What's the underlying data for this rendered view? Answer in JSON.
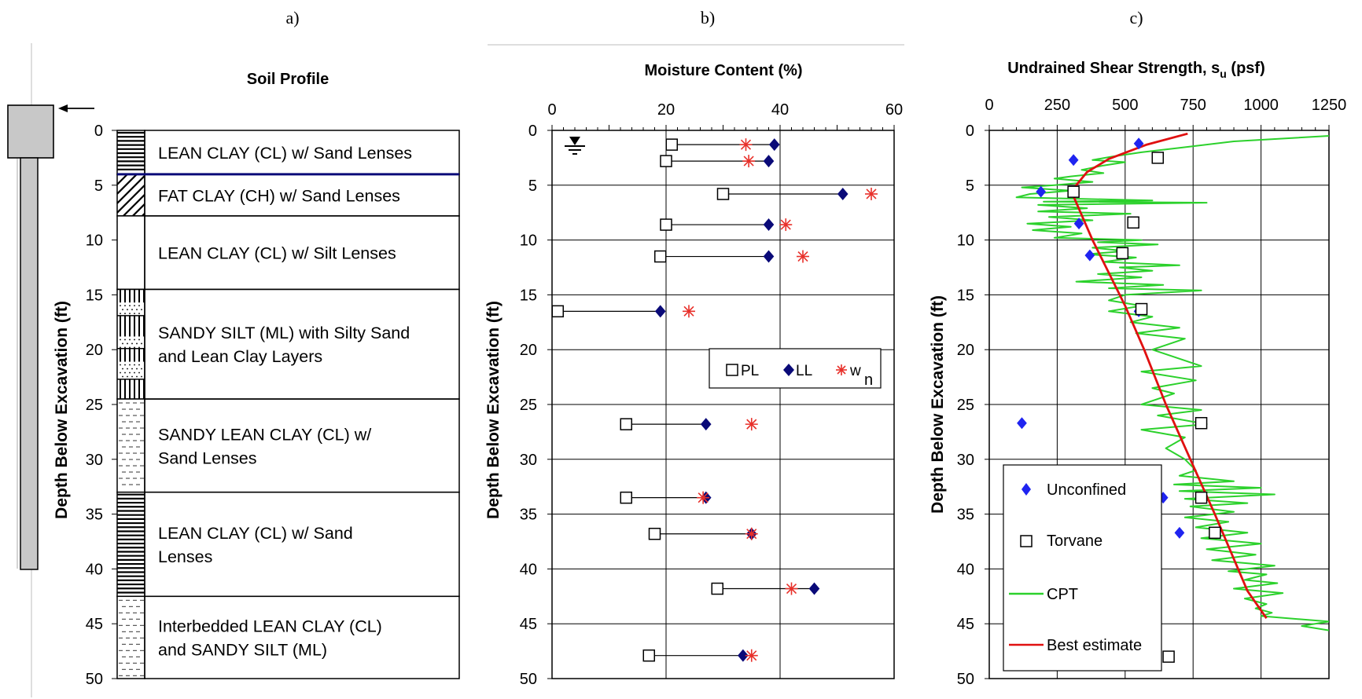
{
  "panel_labels": [
    "a)",
    "b)",
    "c)"
  ],
  "colors": {
    "axis": "#000000",
    "pl_marker": "#000000",
    "ll_marker": "#0a0a78",
    "wn_marker": "#e8302a",
    "unconfined": "#1f24f0",
    "torvane": "#000000",
    "cpt": "#2cd12c",
    "best_estimate": "#e01010",
    "layer_divider": "#0a0a78",
    "pile": "#c8c8c8"
  },
  "soil_profile": {
    "title": "Soil Profile",
    "ylabel": "Depth Below Excavation (ft)",
    "yticks": [
      0,
      5,
      10,
      15,
      20,
      25,
      30,
      35,
      40,
      45,
      50
    ],
    "ylim": [
      0,
      50
    ],
    "layers": [
      {
        "top": 0,
        "bottom": 4,
        "label_lines": [
          "LEAN CLAY (CL) w/ Sand Lenses"
        ],
        "hatch": "horizontal-lines"
      },
      {
        "top": 4,
        "bottom": 7.8,
        "label_lines": [
          "FAT CLAY (CH) w/ Sand Lenses"
        ],
        "hatch": "diagonal"
      },
      {
        "top": 7.8,
        "bottom": 14.5,
        "label_lines": [
          "LEAN CLAY (CL) w/ Silt Lenses"
        ],
        "hatch": "back-diagonal"
      },
      {
        "top": 14.5,
        "bottom": 24.5,
        "label_lines": [
          "SANDY SILT (ML) with Silty Sand",
          "and Lean Clay Layers"
        ],
        "hatch": "silt"
      },
      {
        "top": 24.5,
        "bottom": 33,
        "label_lines": [
          "SANDY LEAN CLAY (CL) w/",
          "Sand Lenses"
        ],
        "hatch": "dashed"
      },
      {
        "top": 33,
        "bottom": 42.5,
        "label_lines": [
          "LEAN CLAY (CL) w/ Sand",
          "Lenses"
        ],
        "hatch": "horizontal-lines"
      },
      {
        "top": 42.5,
        "bottom": 50,
        "label_lines": [
          "Interbedded LEAN CLAY (CL)",
          "and SANDY SILT (ML)"
        ],
        "hatch": "dashed"
      }
    ]
  },
  "chart_data": [
    {
      "type": "scatter",
      "title": "Moisture Content (%)",
      "xlabel": "",
      "ylabel": "Depth Below Excavation (ft)",
      "xlim": [
        0,
        60
      ],
      "ylim": [
        0,
        50
      ],
      "xticks": [
        0,
        20,
        40,
        60
      ],
      "yticks": [
        0,
        5,
        10,
        15,
        20,
        25,
        30,
        35,
        40,
        45,
        50
      ],
      "x_axis_position": "top",
      "y_inverted": true,
      "grid": true,
      "legend_placement": "middle-right",
      "legend": [
        "PL",
        "LL",
        "w_n"
      ],
      "legend_text": {
        "pl": "PL",
        "ll": "LL",
        "wn_main": "w",
        "wn_sub": "n"
      },
      "samples": [
        {
          "depth": 1.3,
          "PL": 21,
          "LL": 39,
          "wn": 34
        },
        {
          "depth": 2.8,
          "PL": 20,
          "LL": 38,
          "wn": 34.5
        },
        {
          "depth": 5.8,
          "PL": 30,
          "LL": 51,
          "wn": 56
        },
        {
          "depth": 8.6,
          "PL": 20,
          "LL": 38,
          "wn": 41
        },
        {
          "depth": 11.5,
          "PL": 19,
          "LL": 38,
          "wn": 44
        },
        {
          "depth": 16.5,
          "PL": 1,
          "LL": 19,
          "wn": 24
        },
        {
          "depth": 26.8,
          "PL": 13,
          "LL": 27,
          "wn": 35
        },
        {
          "depth": 33.5,
          "PL": 13,
          "LL": 27,
          "wn": 26.5
        },
        {
          "depth": 36.8,
          "PL": 18,
          "LL": 35,
          "wn": 35
        },
        {
          "depth": 41.8,
          "PL": 29,
          "LL": 46,
          "wn": 42
        },
        {
          "depth": 47.9,
          "PL": 17,
          "LL": 33.5,
          "wn": 35
        }
      ],
      "water_table_depth": 1
    },
    {
      "type": "scatter",
      "title_main": "Undrained Shear Strength, s",
      "title_sub": "u",
      "title_end": " (psf)",
      "xlabel": "",
      "ylabel": "Depth Below Excavation (ft)",
      "xlim": [
        0,
        1250
      ],
      "ylim": [
        0,
        50
      ],
      "xticks": [
        0,
        250,
        500,
        750,
        1000,
        1250
      ],
      "yticks": [
        0,
        5,
        10,
        15,
        20,
        25,
        30,
        35,
        40,
        45,
        50
      ],
      "x_axis_position": "top",
      "y_inverted": true,
      "grid": true,
      "legend_placement": "bottom-left",
      "series": [
        {
          "name": "Unconfined",
          "kind": "marker-diamond",
          "points": [
            [
              550,
              1.2
            ],
            [
              310,
              2.7
            ],
            [
              190,
              5.6
            ],
            [
              330,
              8.5
            ],
            [
              370,
              11.4
            ],
            [
              550,
              16.5
            ],
            [
              120,
              26.7
            ],
            [
              640,
              33.5
            ],
            [
              700,
              36.7
            ]
          ]
        },
        {
          "name": "Torvane",
          "kind": "marker-square",
          "points": [
            [
              620,
              2.5
            ],
            [
              310,
              5.6
            ],
            [
              530,
              8.4
            ],
            [
              490,
              11.2
            ],
            [
              560,
              16.3
            ],
            [
              780,
              26.7
            ],
            [
              780,
              33.5
            ],
            [
              830,
              36.7
            ],
            [
              660,
              48
            ]
          ]
        },
        {
          "name": "CPT",
          "kind": "line",
          "points": [
            [
              1250,
              0.5
            ],
            [
              900,
              1
            ],
            [
              700,
              1.6
            ],
            [
              560,
              2
            ],
            [
              450,
              2.4
            ],
            [
              380,
              2.7
            ],
            [
              500,
              2.9
            ],
            [
              420,
              3.2
            ],
            [
              340,
              3.6
            ],
            [
              420,
              3.9
            ],
            [
              300,
              4.2
            ],
            [
              240,
              4.4
            ],
            [
              380,
              4.7
            ],
            [
              240,
              5
            ],
            [
              120,
              5.2
            ],
            [
              300,
              5.5
            ],
            [
              150,
              5.8
            ],
            [
              100,
              6.1
            ],
            [
              600,
              6.4
            ],
            [
              200,
              6.5
            ],
            [
              800,
              6.6
            ],
            [
              180,
              6.8
            ],
            [
              360,
              7.1
            ],
            [
              180,
              7.4
            ],
            [
              520,
              7.6
            ],
            [
              220,
              7.9
            ],
            [
              380,
              8.2
            ],
            [
              140,
              8.5
            ],
            [
              300,
              8.8
            ],
            [
              160,
              9.1
            ],
            [
              340,
              9.4
            ],
            [
              240,
              9.8
            ],
            [
              560,
              10
            ],
            [
              400,
              10.2
            ],
            [
              620,
              10.4
            ],
            [
              380,
              10.7
            ],
            [
              500,
              11
            ],
            [
              360,
              11.3
            ],
            [
              540,
              11.6
            ],
            [
              420,
              12
            ],
            [
              700,
              12.3
            ],
            [
              480,
              12.5
            ],
            [
              600,
              12.8
            ],
            [
              400,
              13.1
            ],
            [
              560,
              13.4
            ],
            [
              320,
              13.8
            ],
            [
              640,
              14.1
            ],
            [
              440,
              14.4
            ],
            [
              780,
              14.6
            ],
            [
              500,
              15
            ],
            [
              440,
              15.5
            ],
            [
              560,
              16
            ],
            [
              440,
              16.5
            ],
            [
              600,
              17
            ],
            [
              520,
              17.5
            ],
            [
              700,
              18
            ],
            [
              540,
              18.5
            ],
            [
              720,
              19
            ],
            [
              600,
              20
            ],
            [
              780,
              21.5
            ],
            [
              560,
              22
            ],
            [
              760,
              22.8
            ],
            [
              600,
              23.5
            ],
            [
              680,
              24
            ],
            [
              560,
              25
            ],
            [
              780,
              25.5
            ],
            [
              620,
              26
            ],
            [
              800,
              26.8
            ],
            [
              560,
              27.3
            ],
            [
              720,
              28
            ],
            [
              650,
              29
            ],
            [
              720,
              30
            ],
            [
              760,
              31
            ],
            [
              700,
              31.5
            ],
            [
              900,
              32
            ],
            [
              680,
              32.3
            ],
            [
              1000,
              32.6
            ],
            [
              700,
              32.9
            ],
            [
              1050,
              33.2
            ],
            [
              720,
              33.6
            ],
            [
              950,
              34
            ],
            [
              740,
              34.3
            ],
            [
              900,
              34.8
            ],
            [
              720,
              35.3
            ],
            [
              880,
              35.7
            ],
            [
              760,
              36.2
            ],
            [
              950,
              36.7
            ],
            [
              780,
              37.2
            ],
            [
              1000,
              37.7
            ],
            [
              800,
              38.2
            ],
            [
              980,
              38.7
            ],
            [
              820,
              39.2
            ],
            [
              1050,
              39.7
            ],
            [
              880,
              40.2
            ],
            [
              1020,
              40.5
            ],
            [
              940,
              41
            ],
            [
              1060,
              41.3
            ],
            [
              900,
              41.8
            ],
            [
              1080,
              42.2
            ],
            [
              940,
              42.7
            ],
            [
              1020,
              43.2
            ],
            [
              980,
              43.6
            ],
            [
              1040,
              44
            ],
            [
              1000,
              44.3
            ],
            [
              1250,
              44.8
            ],
            [
              1150,
              45.2
            ],
            [
              1250,
              45.6
            ]
          ]
        },
        {
          "name": "Best estimate",
          "kind": "line",
          "points": [
            [
              730,
              0.3
            ],
            [
              580,
              1.3
            ],
            [
              440,
              2.6
            ],
            [
              360,
              3.8
            ],
            [
              320,
              5
            ],
            [
              310,
              6
            ],
            [
              380,
              10
            ],
            [
              440,
              13
            ],
            [
              500,
              16
            ],
            [
              570,
              20
            ],
            [
              650,
              25
            ],
            [
              740,
              30
            ],
            [
              830,
              35
            ],
            [
              950,
              42
            ],
            [
              1020,
              44.5
            ]
          ]
        }
      ]
    }
  ]
}
